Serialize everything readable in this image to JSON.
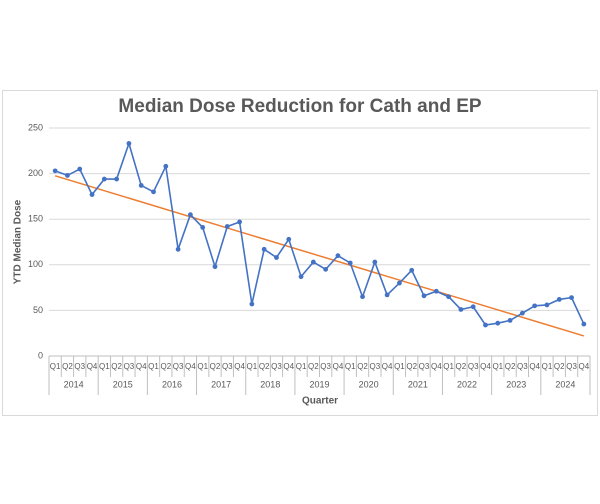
{
  "chart_data": {
    "type": "line",
    "title": "Median Dose Reduction for Cath and EP",
    "x_label": "Quarter",
    "y_label": "YTD Median Dose",
    "categories": [
      "Q1",
      "Q2",
      "Q3",
      "Q4",
      "Q1",
      "Q2",
      "Q3",
      "Q4",
      "Q1",
      "Q2",
      "Q3",
      "Q4",
      "Q1",
      "Q2",
      "Q3",
      "Q4",
      "Q1",
      "Q2",
      "Q3",
      "Q4",
      "Q1",
      "Q2",
      "Q3",
      "Q4",
      "Q1",
      "Q2",
      "Q3",
      "Q4",
      "Q1",
      "Q2",
      "Q3",
      "Q4",
      "Q1",
      "Q2",
      "Q3",
      "Q4",
      "Q1",
      "Q2",
      "Q3",
      "Q4",
      "Q1",
      "Q2",
      "Q3",
      "Q4"
    ],
    "groups": [
      "2014",
      "2015",
      "2016",
      "2017",
      "2018",
      "2019",
      "2020",
      "2021",
      "2022",
      "2023",
      "2024"
    ],
    "series": [
      {
        "name": "YTD Median Dose",
        "color": "#4472c4",
        "values": [
          203,
          198,
          205,
          177,
          194,
          194,
          233,
          187,
          180,
          208,
          117,
          155,
          141,
          98,
          142,
          147,
          57,
          117,
          108,
          128,
          87,
          103,
          95,
          110,
          102,
          65,
          103,
          67,
          80,
          94,
          66,
          71,
          65,
          51,
          54,
          34,
          36,
          39,
          47,
          55,
          56,
          62,
          64,
          35
        ]
      }
    ],
    "trendline": {
      "type": "linear",
      "color": "#ed7d31"
    },
    "ylim": [
      0,
      250
    ],
    "yticks": [
      0,
      50,
      100,
      150,
      200,
      250
    ],
    "grid": true
  }
}
